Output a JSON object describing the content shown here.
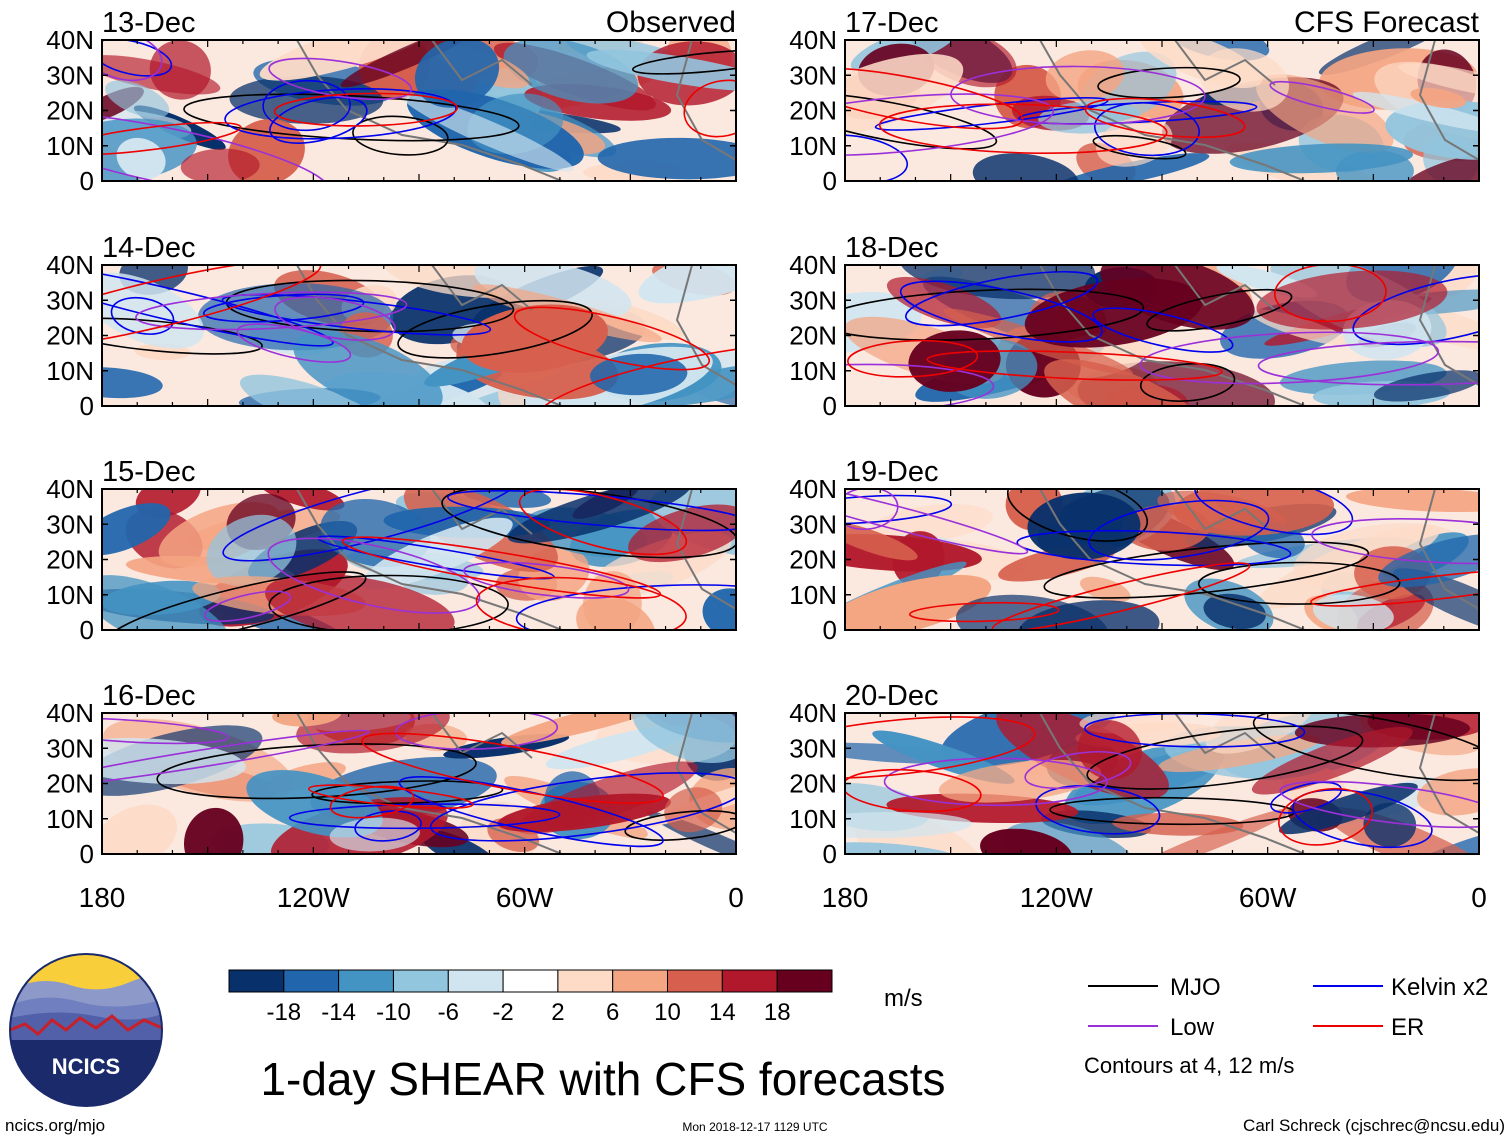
{
  "chart_data": {
    "type": "heatmap",
    "title": "1-day SHEAR with CFS forecasts",
    "units": "m/s",
    "panel_headers": {
      "left": "Observed",
      "right": "CFS Forecast"
    },
    "y_ticks": [
      "40N",
      "30N",
      "20N",
      "10N",
      "0"
    ],
    "x_ticks": [
      "180",
      "120W",
      "60W",
      "0"
    ],
    "x_range_deg_east": [
      -180,
      0
    ],
    "y_range_deg": [
      0,
      40
    ],
    "colorbar": {
      "labels": [
        "-18",
        "-14",
        "-10",
        "-6",
        "-2",
        "2",
        "6",
        "10",
        "14",
        "18"
      ],
      "colors": [
        "#08306b",
        "#2166ac",
        "#4393c3",
        "#92c5de",
        "#d1e5f0",
        "#ffffff",
        "#fddbc7",
        "#f4a582",
        "#d6604d",
        "#b2182b",
        "#67001f"
      ]
    },
    "panels": [
      {
        "date": "13-Dec",
        "source": "Observed"
      },
      {
        "date": "14-Dec",
        "source": "Observed"
      },
      {
        "date": "15-Dec",
        "source": "Observed"
      },
      {
        "date": "16-Dec",
        "source": "Observed"
      },
      {
        "date": "17-Dec",
        "source": "CFS Forecast"
      },
      {
        "date": "18-Dec",
        "source": "CFS Forecast"
      },
      {
        "date": "19-Dec",
        "source": "CFS Forecast"
      },
      {
        "date": "20-Dec",
        "source": "CFS Forecast"
      }
    ],
    "legend": {
      "items": [
        {
          "label": "MJO",
          "color": "#000000"
        },
        {
          "label": "Kelvin x2",
          "color": "#0000ee"
        },
        {
          "label": "Low",
          "color": "#9b30d9"
        },
        {
          "label": "ER",
          "color": "#ee0000"
        }
      ],
      "note": "Contours at 4, 12 m/s"
    }
  },
  "logo": {
    "text": "NCICS"
  },
  "footer": {
    "left": "ncics.org/mjo",
    "center": "Mon 2018-12-17 1129 UTC",
    "right": "Carl Schreck (cjschrec@ncsu.edu)"
  }
}
